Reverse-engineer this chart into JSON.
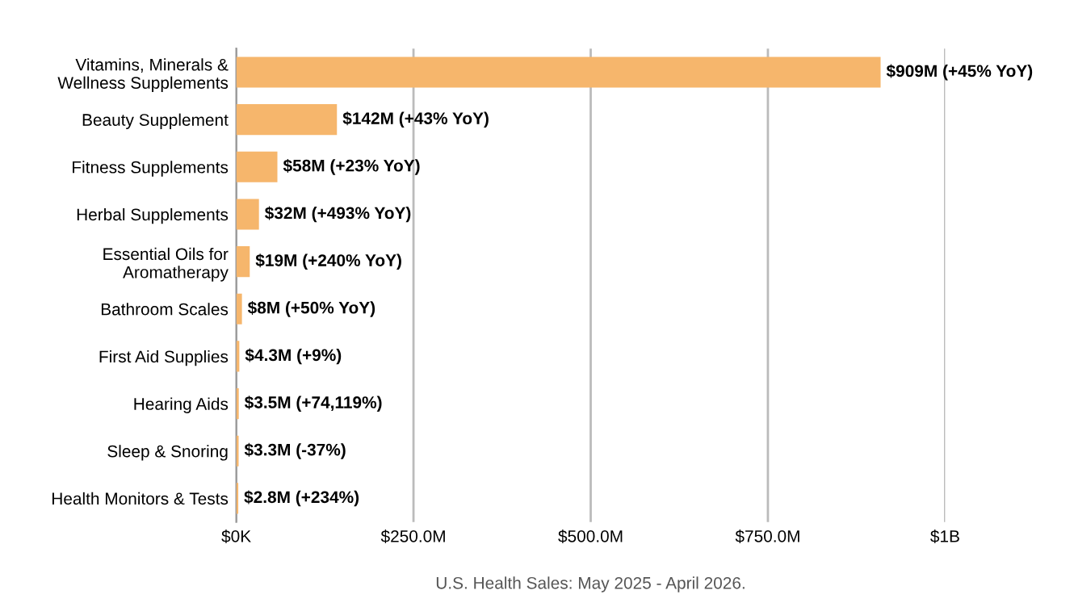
{
  "chart_data": {
    "type": "bar",
    "orientation": "horizontal",
    "categories": [
      "Vitamins, Minerals &\nWellness Supplements",
      "Beauty Supplement",
      "Fitness Supplements",
      "Herbal Supplements",
      "Essential Oils for\nAromatherapy",
      "Bathroom Scales",
      "First Aid Supplies",
      "Hearing Aids",
      "Sleep & Snoring",
      "Health Monitors & Tests"
    ],
    "values": [
      909000000,
      142000000,
      58000000,
      32000000,
      19000000,
      8000000,
      4300000,
      3500000,
      3300000,
      2800000
    ],
    "value_labels": [
      "$909M (+45% YoY)",
      "$142M (+43% YoY)",
      "$58M (+23% YoY)",
      "$32M (+493% YoY)",
      "$19M (+240% YoY)",
      "$8M (+50% YoY)",
      "$4.3M (+9%)",
      "$3.5M (+74,119%)",
      "$3.3M (-37%)",
      "$2.8M (+234%)"
    ],
    "color": "#f6b66c",
    "xlim": [
      0,
      1000000000
    ],
    "xticks": [
      {
        "value": 0,
        "label": "$0K"
      },
      {
        "value": 250000000,
        "label": "$250.0M"
      },
      {
        "value": 500000000,
        "label": "$500.0M"
      },
      {
        "value": 750000000,
        "label": "$750.0M"
      },
      {
        "value": 1000000000,
        "label": "$1B"
      }
    ],
    "grid": "x",
    "annotations": [
      "U.S. Health Sales: May 2025 - April 2026."
    ]
  }
}
